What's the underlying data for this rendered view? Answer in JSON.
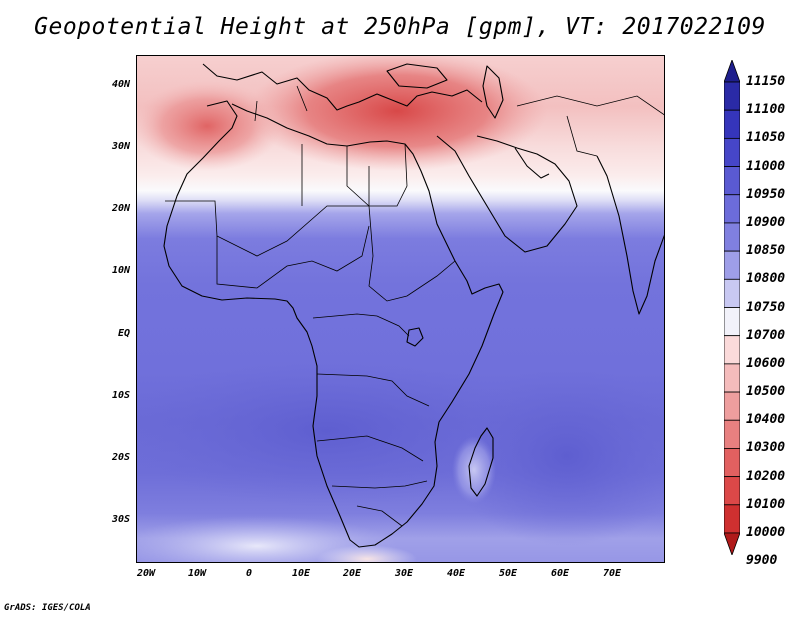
{
  "title": "Geopotential Height at 250hPa [gpm], VT: 2017022109",
  "credit": "GrADS: IGES/COLA",
  "axes": {
    "lat_labels": [
      "40N",
      "30N",
      "20N",
      "10N",
      "EQ",
      "10S",
      "20S",
      "30S"
    ],
    "lat_values": [
      40,
      30,
      20,
      10,
      0,
      -10,
      -20,
      -30
    ],
    "lon_labels": [
      "20W",
      "10W",
      "0",
      "10E",
      "20E",
      "30E",
      "40E",
      "50E",
      "60E",
      "70E"
    ],
    "lon_values": [
      -20,
      -10,
      0,
      10,
      20,
      30,
      40,
      50,
      60,
      70
    ],
    "lat_range": [
      -37,
      45
    ],
    "lon_range": [
      -22,
      80
    ]
  },
  "colorbar": {
    "levels": [
      "11150",
      "11100",
      "11050",
      "11000",
      "10950",
      "10900",
      "10850",
      "10800",
      "10750",
      "10700",
      "10600",
      "10500",
      "10400",
      "10300",
      "10200",
      "10100",
      "10000",
      "9900"
    ],
    "colors": [
      "#1e1e8c",
      "#2a2aa6",
      "#3535bb",
      "#4646c8",
      "#5a5ad2",
      "#6c6cda",
      "#8080e0",
      "#9e9ee8",
      "#c8c8f2",
      "#f2f2fa",
      "#fbdada",
      "#f5bcbc",
      "#ee9e9e",
      "#e88080",
      "#e26060",
      "#dc4848",
      "#cf3030",
      "#b01a1a"
    ]
  },
  "field_colors": {
    "band_blue_light": "#8c8ce4",
    "band_blue_main": "#7373dc",
    "band_blue_dark": "#6a6ad6",
    "band_white": "#fafafc",
    "band_pink_light": "#f8d6d6",
    "band_pink": "#f0b8b8",
    "band_red": "#e48484",
    "band_red_dark": "#d85050",
    "coast": "#000000"
  }
}
